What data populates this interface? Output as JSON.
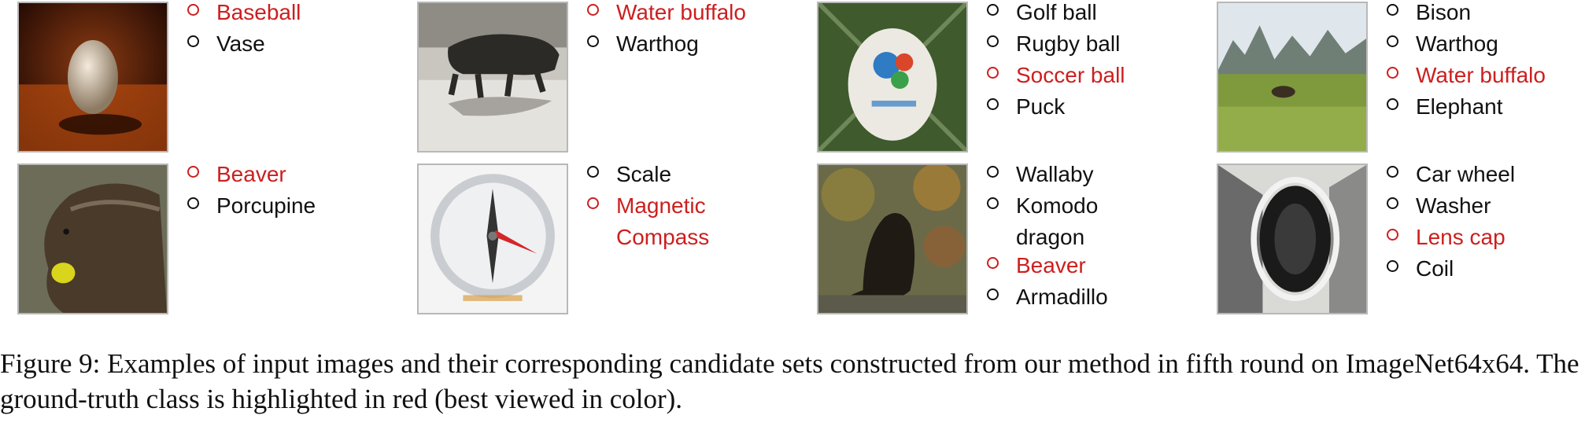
{
  "figure": {
    "panels": [
      {
        "image_content": "egg-shaped object on dark red background",
        "candidates": [
          {
            "label": "Baseball",
            "ground_truth": true
          },
          {
            "label": "Vase",
            "ground_truth": false
          }
        ]
      },
      {
        "image_content": "water buffalo wading in a flooded paddy",
        "candidates": [
          {
            "label": "Water buffalo",
            "ground_truth": true
          },
          {
            "label": "Warthog",
            "ground_truth": false
          }
        ]
      },
      {
        "image_content": "soccer ball on grass",
        "candidates": [
          {
            "label": "Golf ball",
            "ground_truth": false
          },
          {
            "label": "Rugby ball",
            "ground_truth": false
          },
          {
            "label": "Soccer ball",
            "ground_truth": true
          },
          {
            "label": "Puck",
            "ground_truth": false
          }
        ]
      },
      {
        "image_content": "buffalo in a field with mountains",
        "candidates": [
          {
            "label": "Bison",
            "ground_truth": false
          },
          {
            "label": "Warthog",
            "ground_truth": false
          },
          {
            "label": "Water buffalo",
            "ground_truth": true
          },
          {
            "label": "Elephant",
            "ground_truth": false
          }
        ]
      },
      {
        "image_content": "beaver eating in water",
        "candidates": [
          {
            "label": "Beaver",
            "ground_truth": true
          },
          {
            "label": "Porcupine",
            "ground_truth": false
          }
        ]
      },
      {
        "image_content": "magnetic compass",
        "candidates": [
          {
            "label": "Scale",
            "ground_truth": false
          },
          {
            "label": "Magnetic\nCompass",
            "ground_truth": true
          }
        ]
      },
      {
        "image_content": "dark animal among leaves",
        "candidates": [
          {
            "label": "Wallaby",
            "ground_truth": false
          },
          {
            "label": "Komodo\ndragon",
            "ground_truth": false
          },
          {
            "label": "Beaver",
            "ground_truth": true
          },
          {
            "label": "Armadillo",
            "ground_truth": false
          }
        ]
      },
      {
        "image_content": "lens cap close-up",
        "candidates": [
          {
            "label": "Car wheel",
            "ground_truth": false
          },
          {
            "label": "Washer",
            "ground_truth": false
          },
          {
            "label": "Lens cap",
            "ground_truth": true
          },
          {
            "label": "Coil",
            "ground_truth": false
          }
        ]
      }
    ],
    "colors": {
      "ground_truth": "#cc1f1f",
      "other": "#111111",
      "thumb_border": "#b8b8b8"
    },
    "caption": "Figure 9: Examples of input images and their corresponding candidate sets constructed from our method in fifth round on ImageNet64x64. The ground-truth class is highlighted in red (best viewed in color)."
  }
}
